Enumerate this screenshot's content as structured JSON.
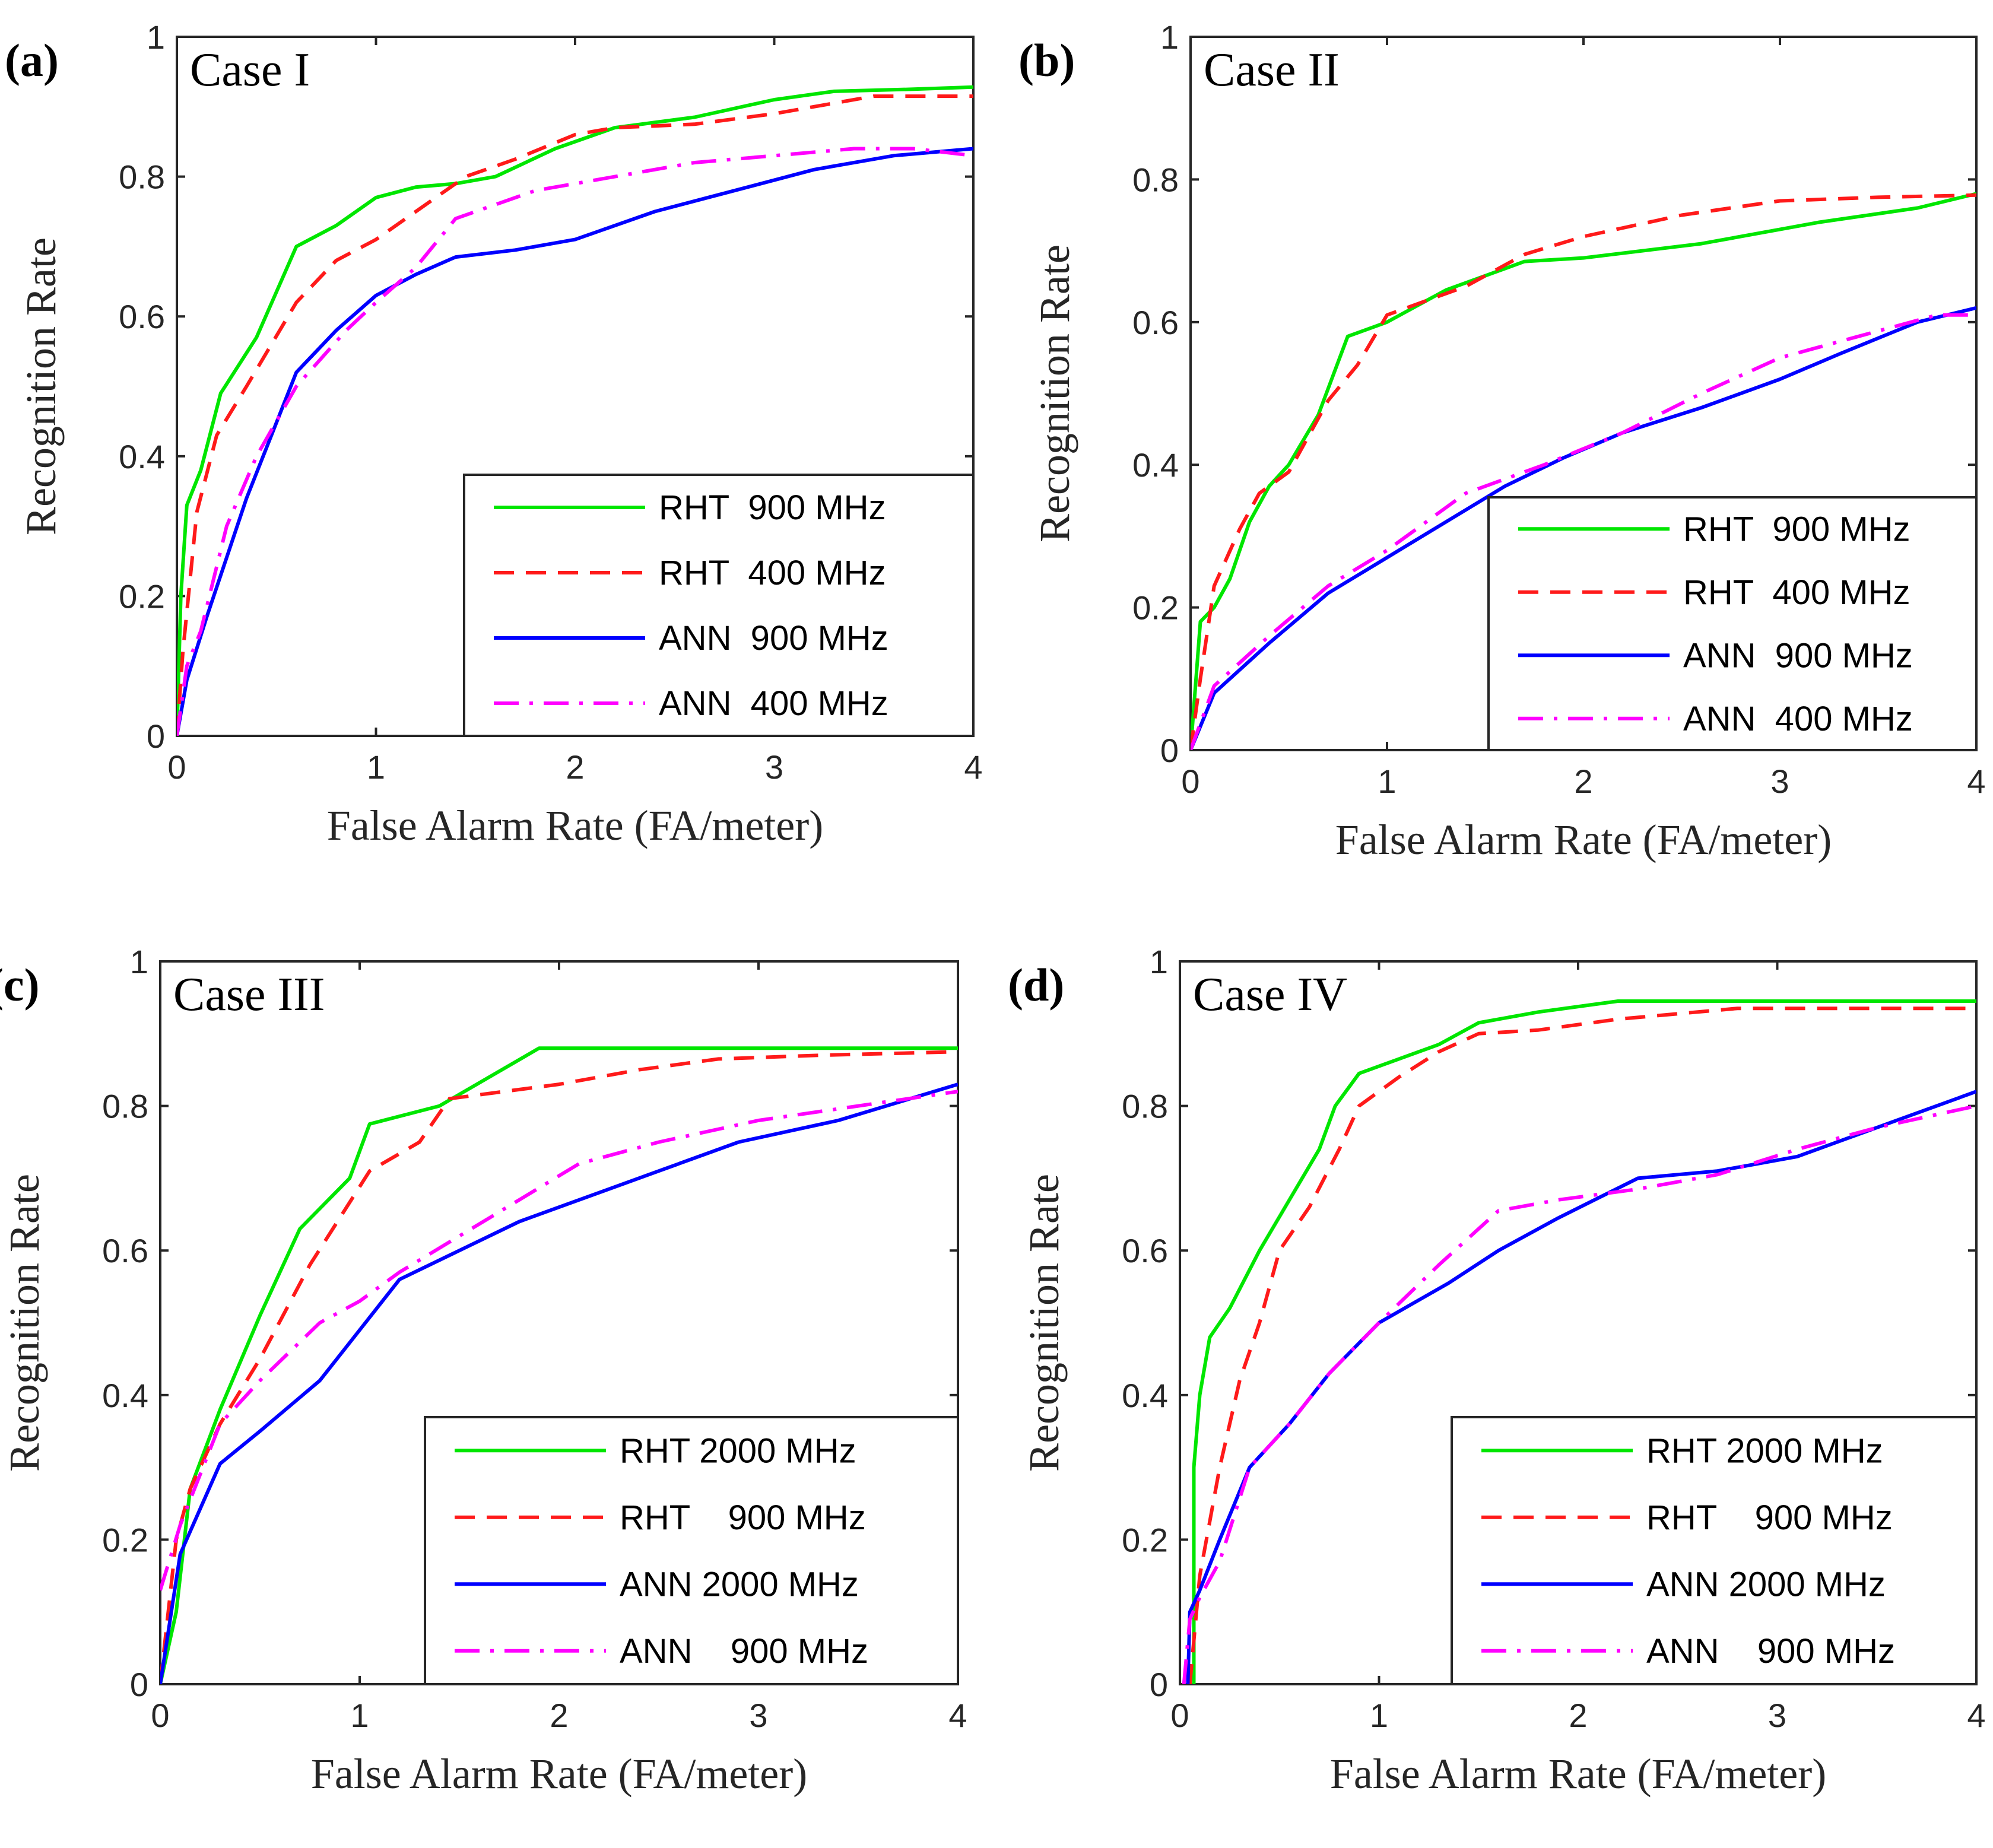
{
  "chart_data": [
    {
      "type": "line",
      "panel": "(a)",
      "title": "Case I",
      "xlabel": "False Alarm Rate (FA/meter)",
      "ylabel": "Recognition Rate",
      "xlim": [
        0,
        4
      ],
      "ylim": [
        0,
        1
      ],
      "xticks": [
        "0",
        "1",
        "2",
        "3",
        "4"
      ],
      "yticks": [
        "0",
        "0.2",
        "0.4",
        "0.6",
        "0.8",
        "1"
      ],
      "legend_position": "bottom-right",
      "series": [
        {
          "name": "RHT  900 MHz",
          "color": "#00e600",
          "dash": "solid",
          "x": [
            0,
            0.02,
            0.05,
            0.12,
            0.22,
            0.4,
            0.6,
            0.8,
            1.0,
            1.2,
            1.4,
            1.6,
            1.9,
            2.2,
            2.6,
            3.0,
            3.3,
            3.7,
            4.0
          ],
          "y": [
            0,
            0.2,
            0.33,
            0.38,
            0.49,
            0.57,
            0.7,
            0.73,
            0.77,
            0.785,
            0.79,
            0.8,
            0.84,
            0.87,
            0.885,
            0.91,
            0.922,
            0.925,
            0.928
          ]
        },
        {
          "name": "RHT  400 MHz",
          "color": "#ff1a1a",
          "dash": "dashed",
          "x": [
            0,
            0.03,
            0.1,
            0.2,
            0.35,
            0.6,
            0.8,
            1.0,
            1.2,
            1.45,
            1.7,
            2.0,
            2.2,
            2.6,
            3.0,
            3.5,
            4.0
          ],
          "y": [
            0,
            0.12,
            0.32,
            0.43,
            0.5,
            0.62,
            0.68,
            0.71,
            0.75,
            0.8,
            0.825,
            0.86,
            0.87,
            0.875,
            0.89,
            0.915,
            0.915
          ]
        },
        {
          "name": "ANN  900 MHz",
          "color": "#0000ff",
          "dash": "solid",
          "x": [
            0,
            0.05,
            0.15,
            0.35,
            0.6,
            0.8,
            1.0,
            1.2,
            1.4,
            1.7,
            2.0,
            2.4,
            2.8,
            3.2,
            3.6,
            4.0
          ],
          "y": [
            0,
            0.08,
            0.17,
            0.34,
            0.52,
            0.58,
            0.63,
            0.66,
            0.685,
            0.695,
            0.71,
            0.75,
            0.78,
            0.81,
            0.83,
            0.84
          ]
        },
        {
          "name": "ANN  400 MHz",
          "color": "#ff00ff",
          "dash": "dashdot",
          "x": [
            0,
            0.05,
            0.12,
            0.25,
            0.4,
            0.6,
            0.85,
            1.0,
            1.2,
            1.4,
            1.8,
            2.2,
            2.6,
            3.0,
            3.4,
            3.7,
            4.0
          ],
          "y": [
            0,
            0.1,
            0.15,
            0.3,
            0.4,
            0.5,
            0.58,
            0.62,
            0.67,
            0.74,
            0.78,
            0.8,
            0.82,
            0.83,
            0.84,
            0.84,
            0.83
          ]
        }
      ]
    },
    {
      "type": "line",
      "panel": "(b)",
      "title": "Case II",
      "xlabel": "False Alarm Rate (FA/meter)",
      "ylabel": "Recognition Rate",
      "xlim": [
        0,
        4
      ],
      "ylim": [
        0,
        1
      ],
      "xticks": [
        "0",
        "1",
        "2",
        "3",
        "4"
      ],
      "yticks": [
        "0",
        "0.2",
        "0.4",
        "0.6",
        "0.8",
        "1"
      ],
      "legend_position": "bottom-right",
      "series": [
        {
          "name": "RHT  900 MHz",
          "color": "#00e600",
          "dash": "solid",
          "x": [
            0,
            0.05,
            0.12,
            0.2,
            0.3,
            0.4,
            0.5,
            0.65,
            0.8,
            1.0,
            1.3,
            1.7,
            2.0,
            2.6,
            3.2,
            3.7,
            4.0
          ],
          "y": [
            0,
            0.18,
            0.2,
            0.24,
            0.32,
            0.37,
            0.4,
            0.47,
            0.58,
            0.6,
            0.645,
            0.685,
            0.69,
            0.71,
            0.74,
            0.76,
            0.78
          ]
        },
        {
          "name": "RHT  400 MHz",
          "color": "#ff1a1a",
          "dash": "dashed",
          "x": [
            0,
            0.05,
            0.12,
            0.25,
            0.35,
            0.5,
            0.7,
            0.85,
            1.0,
            1.2,
            1.4,
            1.7,
            2.0,
            2.5,
            3.0,
            3.5,
            4.0
          ],
          "y": [
            0,
            0.1,
            0.23,
            0.31,
            0.36,
            0.39,
            0.49,
            0.54,
            0.61,
            0.63,
            0.65,
            0.695,
            0.72,
            0.75,
            0.77,
            0.775,
            0.778
          ]
        },
        {
          "name": "ANN  900 MHz",
          "color": "#0000ff",
          "dash": "solid",
          "x": [
            0,
            0.12,
            0.4,
            0.7,
            1.0,
            1.3,
            1.6,
            1.9,
            2.2,
            2.6,
            3.0,
            3.3,
            3.7,
            4.0
          ],
          "y": [
            0,
            0.08,
            0.15,
            0.22,
            0.27,
            0.32,
            0.37,
            0.41,
            0.445,
            0.48,
            0.52,
            0.555,
            0.6,
            0.62
          ]
        },
        {
          "name": "ANN  400 MHz",
          "color": "#ff00ff",
          "dash": "dashdot",
          "x": [
            0,
            0.12,
            0.4,
            0.7,
            1.0,
            1.4,
            1.8,
            2.2,
            2.6,
            3.0,
            3.4,
            3.8,
            4.0
          ],
          "y": [
            0,
            0.09,
            0.16,
            0.23,
            0.28,
            0.36,
            0.4,
            0.445,
            0.5,
            0.55,
            0.58,
            0.61,
            0.61
          ]
        }
      ]
    },
    {
      "type": "line",
      "panel": "(c)",
      "title": "Case III",
      "xlabel": "False Alarm Rate (FA/meter)",
      "ylabel": "Recognition Rate",
      "xlim": [
        0,
        4
      ],
      "ylim": [
        0,
        1
      ],
      "xticks": [
        "0",
        "1",
        "2",
        "3",
        "4"
      ],
      "yticks": [
        "0",
        "0.2",
        "0.4",
        "0.6",
        "0.8",
        "1"
      ],
      "legend_position": "bottom-right",
      "series": [
        {
          "name": "RHT 2000 MHz",
          "color": "#00e600",
          "dash": "solid",
          "x": [
            0,
            0.08,
            0.15,
            0.3,
            0.5,
            0.7,
            0.95,
            1.05,
            1.4,
            1.9,
            2.5,
            3.0,
            3.5,
            4.0
          ],
          "y": [
            0,
            0.1,
            0.27,
            0.38,
            0.51,
            0.63,
            0.7,
            0.775,
            0.8,
            0.88,
            0.88,
            0.88,
            0.88,
            0.88
          ]
        },
        {
          "name": "RHT    900 MHz",
          "color": "#ff1a1a",
          "dash": "dashed",
          "x": [
            0,
            0.08,
            0.15,
            0.3,
            0.5,
            0.75,
            1.05,
            1.3,
            1.45,
            2.0,
            2.4,
            2.8,
            3.3,
            4.0
          ],
          "y": [
            0,
            0.2,
            0.27,
            0.36,
            0.45,
            0.58,
            0.71,
            0.75,
            0.81,
            0.83,
            0.85,
            0.865,
            0.87,
            0.875
          ]
        },
        {
          "name": "ANN 2000 MHz",
          "color": "#0000ff",
          "dash": "solid",
          "x": [
            0,
            0.1,
            0.3,
            0.5,
            0.8,
            1.0,
            1.2,
            1.5,
            1.8,
            2.1,
            2.5,
            2.9,
            3.4,
            4.0
          ],
          "y": [
            0,
            0.18,
            0.305,
            0.35,
            0.42,
            0.49,
            0.56,
            0.6,
            0.64,
            0.67,
            0.71,
            0.75,
            0.78,
            0.83
          ]
        },
        {
          "name": "ANN    900 MHz",
          "color": "#ff00ff",
          "dash": "dashdot",
          "x": [
            0,
            0.1,
            0.3,
            0.5,
            0.8,
            1.0,
            1.2,
            1.5,
            1.8,
            2.1,
            2.5,
            3.0,
            3.5,
            4.0
          ],
          "y": [
            0.13,
            0.22,
            0.36,
            0.42,
            0.5,
            0.53,
            0.57,
            0.62,
            0.67,
            0.72,
            0.75,
            0.78,
            0.8,
            0.82
          ]
        }
      ]
    },
    {
      "type": "line",
      "panel": "(d)",
      "title": "Case IV",
      "xlabel": "False Alarm Rate (FA/meter)",
      "ylabel": "Recognition Rate",
      "xlim": [
        0,
        4
      ],
      "ylim": [
        0,
        1
      ],
      "xticks": [
        "0",
        "1",
        "2",
        "3",
        "4"
      ],
      "yticks": [
        "0",
        "0.2",
        "0.4",
        "0.6",
        "0.8",
        "1"
      ],
      "legend_position": "bottom-right",
      "series": [
        {
          "name": "RHT 2000 MHz",
          "color": "#00e600",
          "dash": "solid",
          "x": [
            0.07,
            0.07,
            0.1,
            0.15,
            0.25,
            0.4,
            0.55,
            0.7,
            0.78,
            0.9,
            1.1,
            1.3,
            1.5,
            1.8,
            2.2,
            3.0,
            3.6,
            4.0
          ],
          "y": [
            0,
            0.3,
            0.4,
            0.48,
            0.52,
            0.6,
            0.67,
            0.74,
            0.8,
            0.845,
            0.865,
            0.885,
            0.915,
            0.93,
            0.945,
            0.945,
            0.945,
            0.945
          ]
        },
        {
          "name": "RHT    900 MHz",
          "color": "#ff1a1a",
          "dash": "dashed",
          "x": [
            0.05,
            0.1,
            0.2,
            0.3,
            0.4,
            0.5,
            0.65,
            0.8,
            0.9,
            1.1,
            1.3,
            1.5,
            1.8,
            2.2,
            2.8,
            3.3,
            4.0
          ],
          "y": [
            0,
            0.15,
            0.3,
            0.42,
            0.5,
            0.6,
            0.66,
            0.74,
            0.8,
            0.84,
            0.875,
            0.9,
            0.905,
            0.92,
            0.935,
            0.935,
            0.935
          ]
        },
        {
          "name": "ANN 2000 MHz",
          "color": "#0000ff",
          "dash": "solid",
          "x": [
            0.04,
            0.05,
            0.1,
            0.2,
            0.35,
            0.55,
            0.75,
            1.0,
            1.35,
            1.6,
            1.9,
            2.3,
            2.7,
            3.1,
            3.5,
            4.0
          ],
          "y": [
            0,
            0.1,
            0.13,
            0.2,
            0.3,
            0.36,
            0.43,
            0.5,
            0.555,
            0.6,
            0.645,
            0.7,
            0.71,
            0.73,
            0.77,
            0.82
          ]
        },
        {
          "name": "ANN    900 MHz",
          "color": "#ff00ff",
          "dash": "dashdot",
          "x": [
            0.02,
            0.05,
            0.1,
            0.2,
            0.35,
            0.55,
            0.75,
            1.0,
            1.3,
            1.6,
            1.9,
            2.3,
            2.7,
            3.1,
            3.5,
            4.0
          ],
          "y": [
            0,
            0.09,
            0.12,
            0.17,
            0.3,
            0.36,
            0.43,
            0.5,
            0.58,
            0.655,
            0.67,
            0.685,
            0.705,
            0.74,
            0.77,
            0.8
          ]
        }
      ]
    }
  ]
}
